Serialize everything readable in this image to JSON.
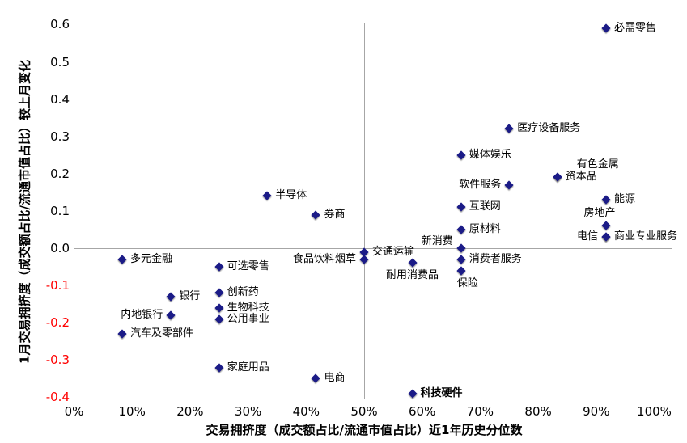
{
  "chart_data": {
    "type": "scatter",
    "title": "",
    "xlabel": "交易拥挤度（成交额占比/流通市值占比）近1年历史分位数",
    "ylabel": "1月交易拥挤度（成交额占比/流通市值占比）较上月变化",
    "xlim": [
      0,
      100
    ],
    "ylim": [
      -0.4,
      0.6
    ],
    "grid": false,
    "legend": false,
    "colors": {
      "marker": "#1b1b87",
      "reference_line": "#a6a6a6",
      "tick_positive": "#000000",
      "tick_negative": "#ff0000",
      "point_label": "#000000"
    },
    "reference_lines": {
      "vertical_at_x": 50,
      "horizontal_at_y": 0
    },
    "x_ticks": [
      {
        "label": "0%",
        "value": 0
      },
      {
        "label": "10%",
        "value": 10
      },
      {
        "label": "20%",
        "value": 20
      },
      {
        "label": "30%",
        "value": 30
      },
      {
        "label": "40%",
        "value": 40
      },
      {
        "label": "50%",
        "value": 50
      },
      {
        "label": "60%",
        "value": 60
      },
      {
        "label": "70%",
        "value": 70
      },
      {
        "label": "80%",
        "value": 80
      },
      {
        "label": "90%",
        "value": 90
      },
      {
        "label": "100%",
        "value": 100
      }
    ],
    "y_ticks": [
      {
        "label": "0.6",
        "value": 0.6
      },
      {
        "label": "0.5",
        "value": 0.5
      },
      {
        "label": "0.4",
        "value": 0.4
      },
      {
        "label": "0.3",
        "value": 0.3
      },
      {
        "label": "0.2",
        "value": 0.2
      },
      {
        "label": "0.1",
        "value": 0.1
      },
      {
        "label": "0.0",
        "value": 0.0
      },
      {
        "label": "-0.1",
        "value": -0.1
      },
      {
        "label": "-0.2",
        "value": -0.2
      },
      {
        "label": "-0.3",
        "value": -0.3
      },
      {
        "label": "-0.4",
        "value": -0.4
      }
    ],
    "points": [
      {
        "label": "必需零售",
        "x": 91.7,
        "y": 0.59,
        "pos": "right"
      },
      {
        "label": "医疗设备服务",
        "x": 75,
        "y": 0.32,
        "pos": "right"
      },
      {
        "label": "媒体娱乐",
        "x": 66.7,
        "y": 0.25,
        "pos": "right"
      },
      {
        "label": "有色金属",
        "x": 83.3,
        "y": 0.19,
        "pos": "above",
        "dx": 50
      },
      {
        "label": "资本品",
        "x": 83.3,
        "y": 0.19,
        "pos": "right"
      },
      {
        "label": "软件服务",
        "x": 75,
        "y": 0.17,
        "pos": "left"
      },
      {
        "label": "半导体",
        "x": 33.3,
        "y": 0.14,
        "pos": "right"
      },
      {
        "label": "能源",
        "x": 91.7,
        "y": 0.13,
        "pos": "right"
      },
      {
        "label": "互联网",
        "x": 66.7,
        "y": 0.11,
        "pos": "right"
      },
      {
        "label": "券商",
        "x": 41.7,
        "y": 0.09,
        "pos": "right"
      },
      {
        "label": "房地产",
        "x": 91.7,
        "y": 0.06,
        "pos": "above",
        "dx": -8
      },
      {
        "label": "原材料",
        "x": 66.7,
        "y": 0.05,
        "pos": "right"
      },
      {
        "label": "电信",
        "x": 91.7,
        "y": 0.03,
        "pos": "left"
      },
      {
        "label": "商业专业服务",
        "x": 91.7,
        "y": 0.03,
        "pos": "right"
      },
      {
        "label": "新消费",
        "x": 66.7,
        "y": 0.0,
        "pos": "left",
        "dy": -8
      },
      {
        "label": "交通运输",
        "x": 50,
        "y": -0.01,
        "pos": "right"
      },
      {
        "label": "多元金融",
        "x": 8.3,
        "y": -0.03,
        "pos": "right"
      },
      {
        "label": "食品饮料烟草",
        "x": 50,
        "y": -0.03,
        "pos": "left"
      },
      {
        "label": "消费者服务",
        "x": 66.7,
        "y": -0.03,
        "pos": "right"
      },
      {
        "label": "耐用消费品",
        "x": 58.3,
        "y": -0.04,
        "pos": "below"
      },
      {
        "label": "可选零售",
        "x": 25,
        "y": -0.05,
        "pos": "right"
      },
      {
        "label": "保险",
        "x": 66.7,
        "y": -0.06,
        "pos": "below",
        "dx": 8
      },
      {
        "label": "创新药",
        "x": 25,
        "y": -0.12,
        "pos": "right"
      },
      {
        "label": "银行",
        "x": 16.7,
        "y": -0.13,
        "pos": "right"
      },
      {
        "label": "生物科技",
        "x": 25,
        "y": -0.16,
        "pos": "right"
      },
      {
        "label": "内地银行",
        "x": 16.7,
        "y": -0.18,
        "pos": "left"
      },
      {
        "label": "公用事业",
        "x": 25,
        "y": -0.19,
        "pos": "right"
      },
      {
        "label": "汽车及零部件",
        "x": 8.3,
        "y": -0.23,
        "pos": "right"
      },
      {
        "label": "家庭用品",
        "x": 25,
        "y": -0.32,
        "pos": "right"
      },
      {
        "label": "电商",
        "x": 41.7,
        "y": -0.35,
        "pos": "right"
      },
      {
        "label": "科技硬件",
        "x": 58.3,
        "y": -0.39,
        "pos": "right",
        "bold": true
      }
    ]
  }
}
